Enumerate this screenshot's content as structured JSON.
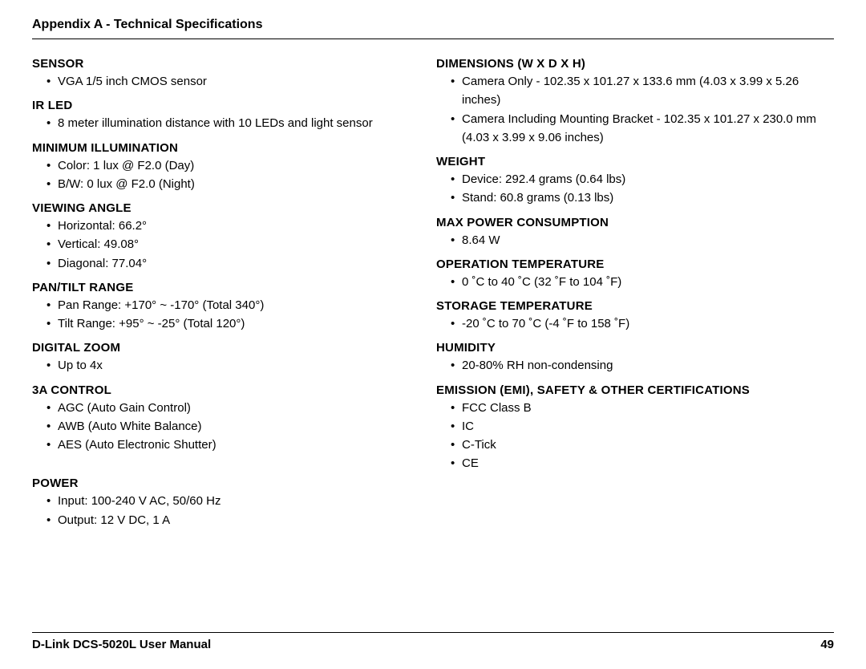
{
  "header": {
    "title": "Appendix A - Technical Specifications"
  },
  "footer": {
    "manual": "D-Link DCS-5020L User Manual",
    "page": "49"
  },
  "left": {
    "sensor": {
      "heading": "SENSOR",
      "items": [
        "VGA 1/5 inch CMOS sensor"
      ]
    },
    "irled": {
      "heading": "IR LED",
      "items": [
        "8 meter illumination distance with 10 LEDs and light sensor"
      ]
    },
    "minillum": {
      "heading": "MINIMUM ILLUMINATION",
      "items": [
        "Color: 1 lux @ F2.0 (Day)",
        "B/W: 0 lux @ F2.0 (Night)"
      ]
    },
    "viewang": {
      "heading": "VIEWING ANGLE",
      "items": [
        "Horizontal: 66.2°",
        "Vertical: 49.08°",
        "Diagonal: 77.04°"
      ]
    },
    "pantilt": {
      "heading": "PAN/TILT RANGE",
      "items": [
        "Pan Range: +170° ~ -170° (Total 340°)",
        "Tilt Range: +95° ~ -25° (Total 120°)"
      ]
    },
    "dzoom": {
      "heading": "DIGITAL ZOOM",
      "items": [
        "Up to 4x"
      ]
    },
    "a3ctrl": {
      "heading": "3A CONTROL",
      "items": [
        "AGC (Auto Gain Control)",
        "AWB (Auto White Balance)",
        "AES (Auto Electronic Shutter)"
      ]
    },
    "power": {
      "heading": "POWER",
      "items": [
        "Input: 100-240 V AC, 50/60 Hz",
        "Output: 12 V DC, 1 A"
      ]
    }
  },
  "right": {
    "dims": {
      "heading": "DIMENSIONS (W X D X H)",
      "items": [
        "Camera Only - 102.35 x 101.27 x 133.6 mm (4.03 x 3.99 x 5.26 inches)",
        "Camera Including Mounting Bracket - 102.35 x 101.27 x 230.0 mm (4.03 x 3.99 x 9.06 inches)"
      ]
    },
    "weight": {
      "heading": "WEIGHT",
      "items": [
        "Device: 292.4 grams (0.64 lbs)",
        "Stand: 60.8 grams (0.13 lbs)"
      ]
    },
    "maxpwr": {
      "heading": "MAX POWER CONSUMPTION",
      "items": [
        "8.64 W"
      ]
    },
    "optemp": {
      "heading": "OPERATION TEMPERATURE",
      "items": [
        "0 ˚C to 40 ˚C (32 ˚F to 104 ˚F)"
      ]
    },
    "sttemp": {
      "heading": "STORAGE TEMPERATURE",
      "items": [
        "-20 ˚C to 70 ˚C (-4 ˚F to 158 ˚F)"
      ]
    },
    "humid": {
      "heading": "HUMIDITY",
      "items": [
        "20-80% RH non-condensing"
      ]
    },
    "emi": {
      "heading": "EMISSION (EMI), SAFETY & OTHER CERTIFICATIONS",
      "items": [
        "FCC Class B",
        "IC",
        "C-Tick",
        "CE"
      ]
    }
  }
}
